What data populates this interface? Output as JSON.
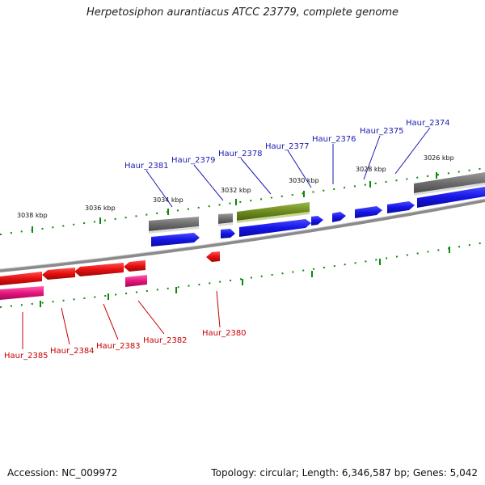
{
  "title": "Herpetosiphon aurantiacus ATCC 23779, complete genome",
  "accession_text": "Accession: NC_009972",
  "topology_text": "Topology: circular; Length: 6,346,587 bp; Genes: 5,042",
  "colors": {
    "forward_gene": "#1515e6",
    "reverse_gene": "#e60f0f",
    "forward_other": "#6e6e6e",
    "forward_highlight": "#6e8c1e",
    "reverse_rna": "#e6147d",
    "backbone": "#8a8a8a",
    "tick": "#0a8a0a"
  },
  "kbp_labels": [
    "3026 kbp",
    "3028 kbp",
    "3030 kbp",
    "3032 kbp",
    "3034 kbp",
    "3036 kbp",
    "3038 kbp"
  ],
  "forward_labels": [
    "Haur_2374",
    "Haur_2375",
    "Haur_2376",
    "Haur_2377",
    "Haur_2378",
    "Haur_2379",
    "Haur_2381"
  ],
  "reverse_labels": [
    "Haur_2380",
    "Haur_2382",
    "Haur_2383",
    "Haur_2384",
    "Haur_2385"
  ]
}
